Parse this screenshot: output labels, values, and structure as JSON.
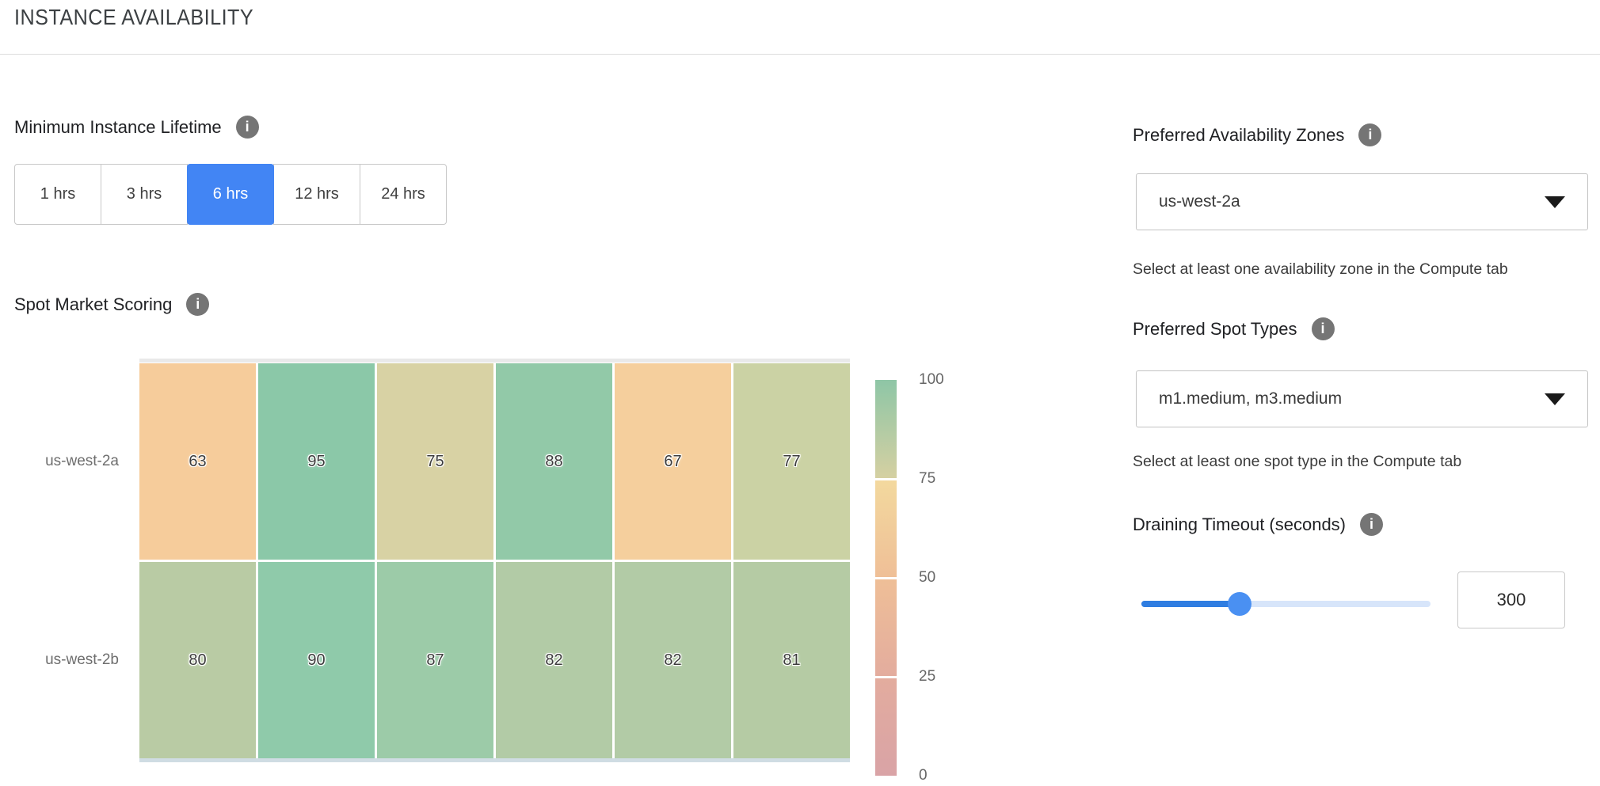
{
  "header": {
    "title": "INSTANCE AVAILABILITY"
  },
  "lifetime": {
    "label": "Minimum Instance Lifetime",
    "options": [
      "1 hrs",
      "3 hrs",
      "6 hrs",
      "12 hrs",
      "24 hrs"
    ],
    "selected": "6 hrs"
  },
  "scoring": {
    "label": "Spot Market Scoring"
  },
  "chart_data": {
    "type": "heatmap",
    "title": "Spot Market Scoring",
    "rows": [
      "us-west-2a",
      "us-west-2b"
    ],
    "num_columns": 6,
    "x_tick_labels_visible": false,
    "value_range": [
      0,
      100
    ],
    "series": [
      {
        "name": "us-west-2a",
        "values": [
          63,
          95,
          75,
          88,
          67,
          77
        ]
      },
      {
        "name": "us-west-2b",
        "values": [
          80,
          90,
          87,
          82,
          82,
          81
        ]
      }
    ],
    "cell_colors": [
      [
        "#f6cc9b",
        "#8bc8a8",
        "#d8d2a4",
        "#92c9a8",
        "#f5cf9d",
        "#cbd2a4"
      ],
      [
        "#b9cba4",
        "#8fcaaa",
        "#9ccba8",
        "#b2cba6",
        "#b2cba6",
        "#b5cba4"
      ]
    ],
    "colorbar": {
      "position": "right",
      "ticks": [
        100,
        75,
        50,
        25,
        0
      ],
      "separator_values": [
        75,
        50,
        25
      ],
      "gradient_stops": [
        {
          "value": 100,
          "color": "#8ec6a6"
        },
        {
          "value": 75,
          "color_above": "#d5d0a2",
          "color_below": "#f3d99e"
        },
        {
          "value": 50,
          "color": "#efbf97"
        },
        {
          "value": 25,
          "color": "#e3ac9e"
        },
        {
          "value": 0,
          "color": "#d9a3a6"
        }
      ]
    }
  },
  "zones": {
    "label": "Preferred Availability Zones",
    "value": "us-west-2a",
    "helper": "Select at least one availability zone in the Compute tab"
  },
  "spot_types": {
    "label": "Preferred Spot Types",
    "value": "m1.medium, m3.medium",
    "helper": "Select at least one spot type in the Compute tab"
  },
  "draining": {
    "label": "Draining Timeout (seconds)",
    "value": "300",
    "slider_percent": 34
  },
  "icons": {
    "info": "i"
  },
  "colors": {
    "accent_blue": "#4285f4",
    "slider_fill": "#2f7de1",
    "slider_track": "#d7e5fa",
    "slider_thumb": "#4a90f2",
    "info_icon_gray": "#757575"
  }
}
